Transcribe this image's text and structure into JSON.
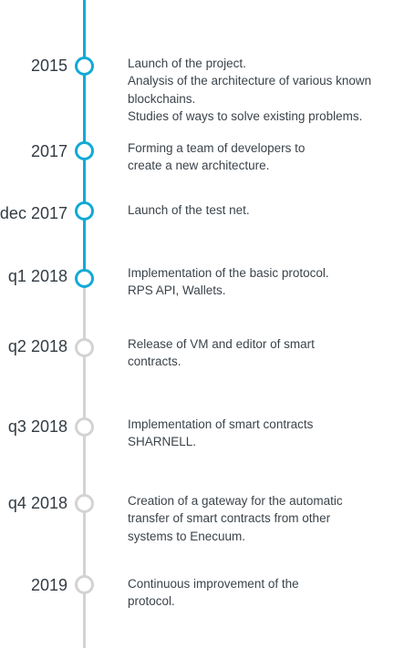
{
  "colors": {
    "done": "#13a9d6",
    "todo": "#d3d3d3",
    "text": "#333b42"
  },
  "milestones": [
    {
      "date": "2015",
      "status": "done",
      "lines": [
        "Launch of the project.",
        "Analysis of the architecture of various known",
        "blockchains.",
        "Studies of ways to solve existing problems."
      ]
    },
    {
      "date": "2017",
      "status": "done",
      "lines": [
        "Forming a team of developers to",
        "create a new architecture."
      ]
    },
    {
      "date": "dec 2017",
      "status": "done",
      "lines": [
        "Launch of the test net."
      ]
    },
    {
      "date": "q1 2018",
      "status": "done",
      "lines": [
        "Implementation of the basic protocol.",
        "RPS API, Wallets."
      ]
    },
    {
      "date": "q2 2018",
      "status": "todo",
      "lines": [
        "Release of VM and editor of smart",
        "contracts."
      ]
    },
    {
      "date": "q3 2018",
      "status": "todo",
      "lines": [
        "Implementation of smart contracts",
        "SHARNELL."
      ]
    },
    {
      "date": "q4 2018",
      "status": "todo",
      "lines": [
        "Creation of a gateway for the automatic",
        "transfer of smart contracts from other",
        "systems to Enecuum."
      ]
    },
    {
      "date": "2019",
      "status": "todo",
      "lines": [
        "Continuous improvement of the",
        "protocol."
      ]
    }
  ]
}
